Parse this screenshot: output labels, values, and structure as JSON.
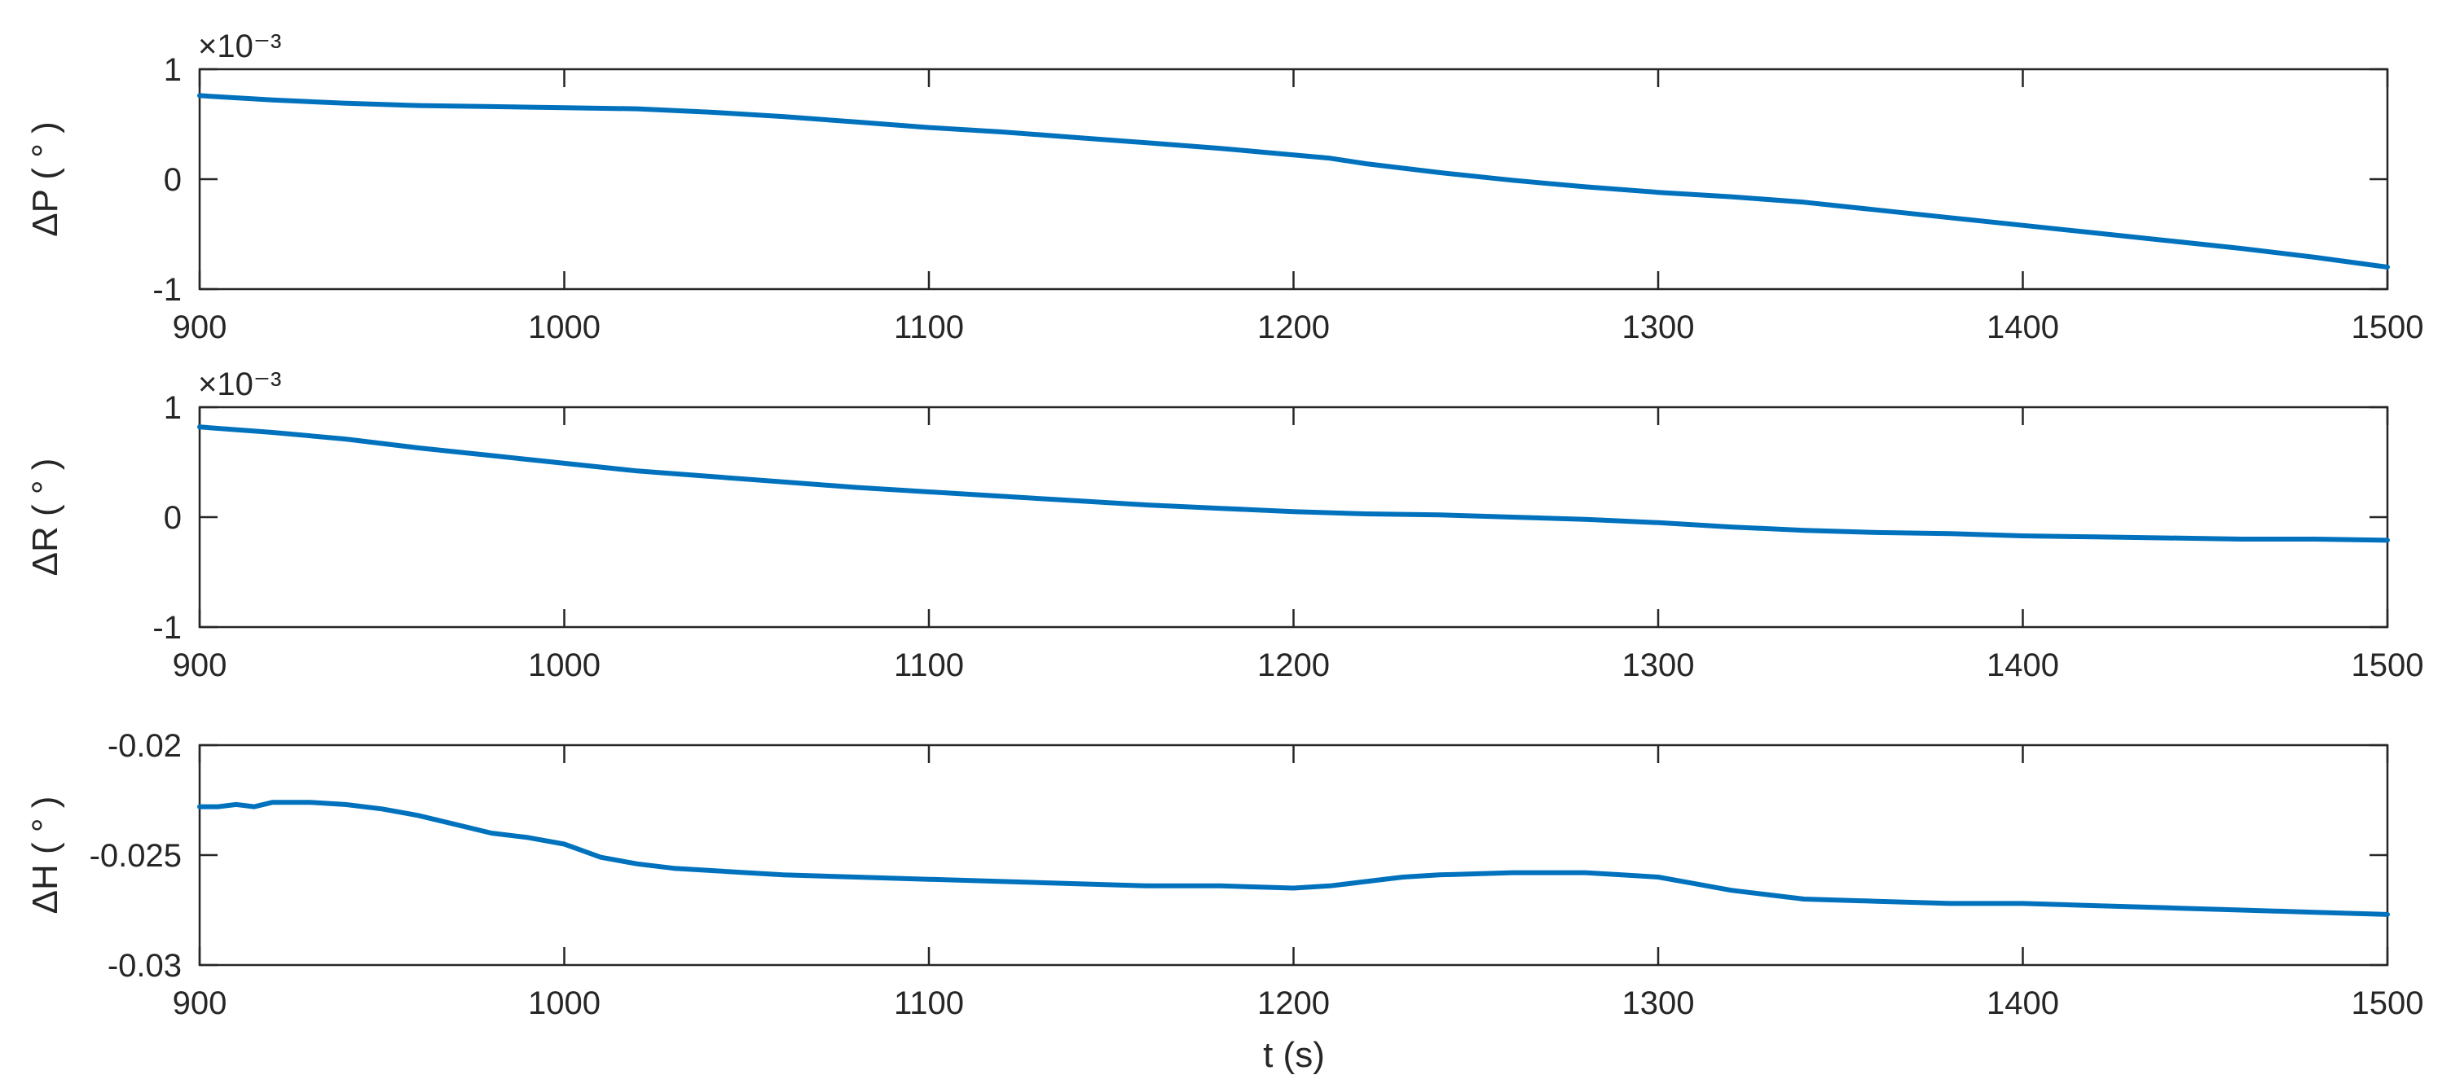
{
  "figure": {
    "xlabel": "t (s)"
  },
  "chart_data": [
    {
      "type": "line",
      "ylabel": "ΔP ( ° )",
      "exponent_label": "×10⁻³",
      "xlim": [
        900,
        1500
      ],
      "ylim": [
        -1,
        1
      ],
      "xticks": [
        900,
        1000,
        1100,
        1200,
        1300,
        1400,
        1500
      ],
      "yticks": [
        -1,
        0,
        1
      ],
      "ytick_labels": [
        "-1",
        "0",
        "1"
      ],
      "color": "#0072BD",
      "series": [
        {
          "x": [
            900,
            920,
            940,
            960,
            980,
            1000,
            1020,
            1040,
            1060,
            1080,
            1100,
            1120,
            1140,
            1160,
            1180,
            1200,
            1210,
            1220,
            1240,
            1260,
            1280,
            1300,
            1320,
            1340,
            1360,
            1380,
            1400,
            1420,
            1440,
            1460,
            1480,
            1500
          ],
          "y": [
            0.76,
            0.72,
            0.69,
            0.67,
            0.66,
            0.65,
            0.64,
            0.61,
            0.57,
            0.52,
            0.47,
            0.43,
            0.38,
            0.33,
            0.28,
            0.22,
            0.19,
            0.14,
            0.06,
            -0.01,
            -0.07,
            -0.12,
            -0.16,
            -0.21,
            -0.28,
            -0.35,
            -0.42,
            -0.49,
            -0.56,
            -0.63,
            -0.71,
            -0.8
          ]
        }
      ]
    },
    {
      "type": "line",
      "ylabel": "ΔR ( ° )",
      "exponent_label": "×10⁻³",
      "xlim": [
        900,
        1500
      ],
      "ylim": [
        -1,
        1
      ],
      "xticks": [
        900,
        1000,
        1100,
        1200,
        1300,
        1400,
        1500
      ],
      "yticks": [
        -1,
        0,
        1
      ],
      "ytick_labels": [
        "-1",
        "0",
        "1"
      ],
      "color": "#0072BD",
      "series": [
        {
          "x": [
            900,
            920,
            940,
            960,
            980,
            1000,
            1020,
            1040,
            1060,
            1080,
            1100,
            1120,
            1140,
            1160,
            1180,
            1200,
            1220,
            1240,
            1260,
            1280,
            1300,
            1320,
            1340,
            1360,
            1380,
            1400,
            1420,
            1440,
            1460,
            1480,
            1500
          ],
          "y": [
            0.82,
            0.77,
            0.71,
            0.63,
            0.56,
            0.49,
            0.42,
            0.37,
            0.32,
            0.27,
            0.23,
            0.19,
            0.15,
            0.11,
            0.08,
            0.05,
            0.03,
            0.02,
            0.0,
            -0.02,
            -0.05,
            -0.09,
            -0.12,
            -0.14,
            -0.15,
            -0.17,
            -0.18,
            -0.19,
            -0.2,
            -0.2,
            -0.21
          ]
        }
      ]
    },
    {
      "type": "line",
      "ylabel": "ΔH ( ° )",
      "exponent_label": "",
      "xlim": [
        900,
        1500
      ],
      "ylim": [
        -0.03,
        -0.02
      ],
      "xticks": [
        900,
        1000,
        1100,
        1200,
        1300,
        1400,
        1500
      ],
      "yticks": [
        -0.03,
        -0.025,
        -0.02
      ],
      "ytick_labels": [
        "-0.03",
        "-0.025",
        "-0.02"
      ],
      "color": "#0072BD",
      "series": [
        {
          "x": [
            900,
            905,
            910,
            915,
            920,
            930,
            940,
            950,
            960,
            970,
            980,
            990,
            1000,
            1005,
            1010,
            1020,
            1030,
            1040,
            1060,
            1080,
            1100,
            1120,
            1140,
            1160,
            1180,
            1200,
            1210,
            1220,
            1230,
            1240,
            1260,
            1280,
            1290,
            1300,
            1310,
            1320,
            1330,
            1340,
            1360,
            1380,
            1400,
            1420,
            1440,
            1460,
            1480,
            1500
          ],
          "y": [
            -0.0228,
            -0.0228,
            -0.0227,
            -0.0228,
            -0.0226,
            -0.0226,
            -0.0227,
            -0.0229,
            -0.0232,
            -0.0236,
            -0.024,
            -0.0242,
            -0.0245,
            -0.0248,
            -0.0251,
            -0.0254,
            -0.0256,
            -0.0257,
            -0.0259,
            -0.026,
            -0.0261,
            -0.0262,
            -0.0263,
            -0.0264,
            -0.0264,
            -0.0265,
            -0.0264,
            -0.0262,
            -0.026,
            -0.0259,
            -0.0258,
            -0.0258,
            -0.0259,
            -0.026,
            -0.0263,
            -0.0266,
            -0.0268,
            -0.027,
            -0.0271,
            -0.0272,
            -0.0272,
            -0.0273,
            -0.0274,
            -0.0275,
            -0.0276,
            -0.0277
          ]
        }
      ]
    }
  ]
}
